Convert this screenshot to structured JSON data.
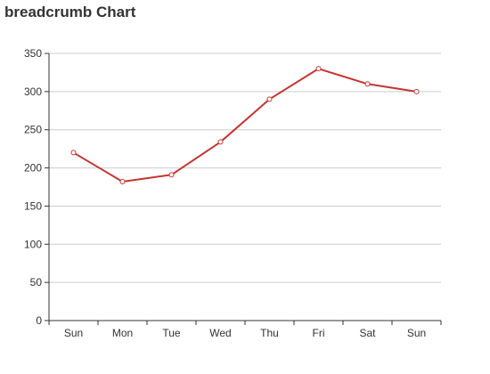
{
  "chart_data": {
    "type": "line",
    "title": "breadcrumb Chart",
    "categories": [
      "Sun",
      "Mon",
      "Tue",
      "Wed",
      "Thu",
      "Fri",
      "Sat",
      "Sun"
    ],
    "series": [
      {
        "values": [
          220,
          182,
          191,
          234,
          290,
          330,
          310,
          300
        ]
      }
    ],
    "ylim": [
      0,
      350
    ],
    "yticks": [
      0,
      50,
      100,
      150,
      200,
      250,
      300,
      350
    ],
    "xlabel": "",
    "ylabel": "",
    "grid": "horizontal",
    "line_color": "#c23531"
  }
}
